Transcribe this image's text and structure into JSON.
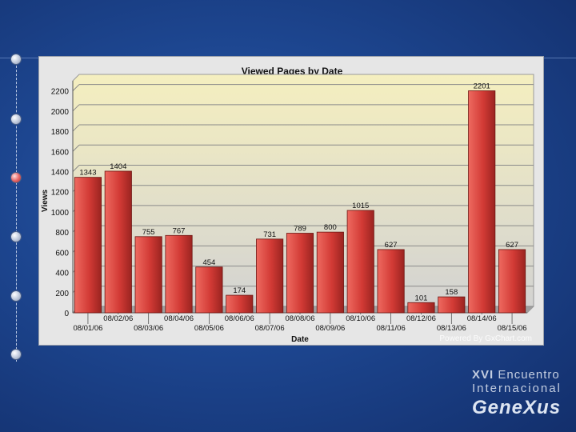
{
  "chart_data": {
    "type": "bar",
    "title": "Viewed Pages by Date",
    "xlabel": "Date",
    "ylabel": "Views",
    "ylim": [
      0,
      2300
    ],
    "yticks": [
      0,
      200,
      400,
      600,
      800,
      1000,
      1200,
      1400,
      1600,
      1800,
      2000,
      2200
    ],
    "categories": [
      "08/01/06",
      "08/02/06",
      "08/03/06",
      "08/04/06",
      "08/05/06",
      "08/06/06",
      "08/07/06",
      "08/08/06",
      "08/09/06",
      "08/10/06",
      "08/11/06",
      "08/12/06",
      "08/13/06",
      "08/14/06",
      "08/15/06"
    ],
    "values": [
      1343,
      1404,
      755,
      767,
      454,
      174,
      731,
      789,
      800,
      1015,
      627,
      101,
      158,
      2201,
      627
    ],
    "grid": true,
    "watermark": "Powered By GxChart.com",
    "colors": {
      "bar": "#d23a35",
      "bar_highlight": "#ee6a60",
      "bar_shadow": "#8a1e1a",
      "plot_top": "#f5efbf",
      "plot_bottom": "#cfcfcf"
    }
  },
  "branding": {
    "line1_number": "XVI",
    "line1_text": "Encuentro",
    "line2": "Internacional",
    "brand": "GeneXus"
  }
}
